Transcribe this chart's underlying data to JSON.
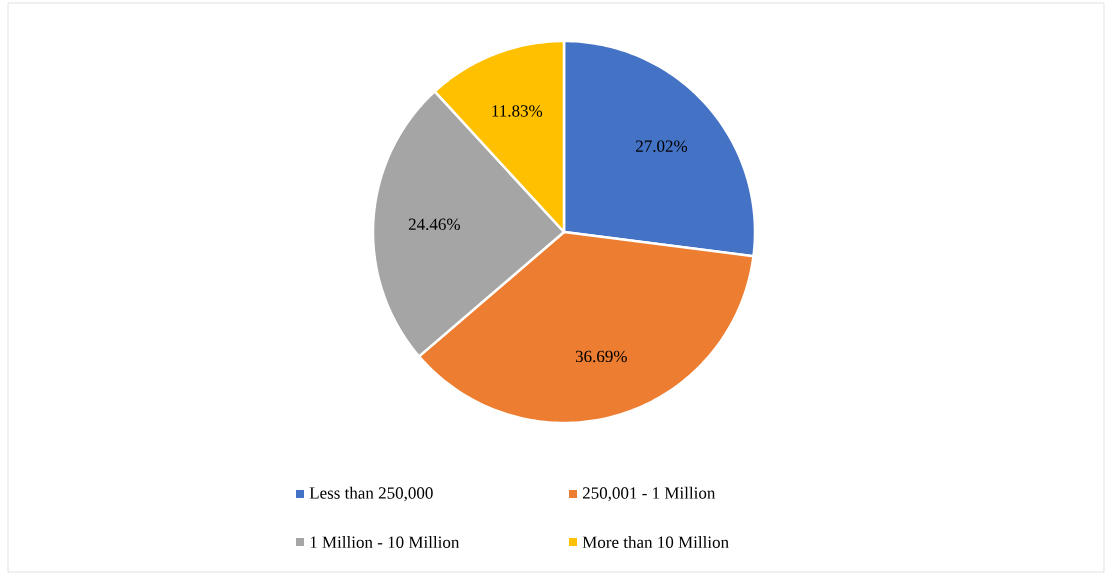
{
  "chart_data": {
    "type": "pie",
    "categories": [
      "Less than 250,000",
      "250,001 - 1 Million",
      "1 Million - 10 Million",
      "More than 10 Million"
    ],
    "values": [
      27.02,
      36.69,
      24.46,
      11.83
    ],
    "colors": [
      "#4472c4",
      "#ed7d31",
      "#a5a5a5",
      "#ffc000"
    ],
    "value_labels": [
      "27.02%",
      "36.69%",
      "24.46%",
      "11.83%"
    ],
    "legend": "bottom"
  }
}
